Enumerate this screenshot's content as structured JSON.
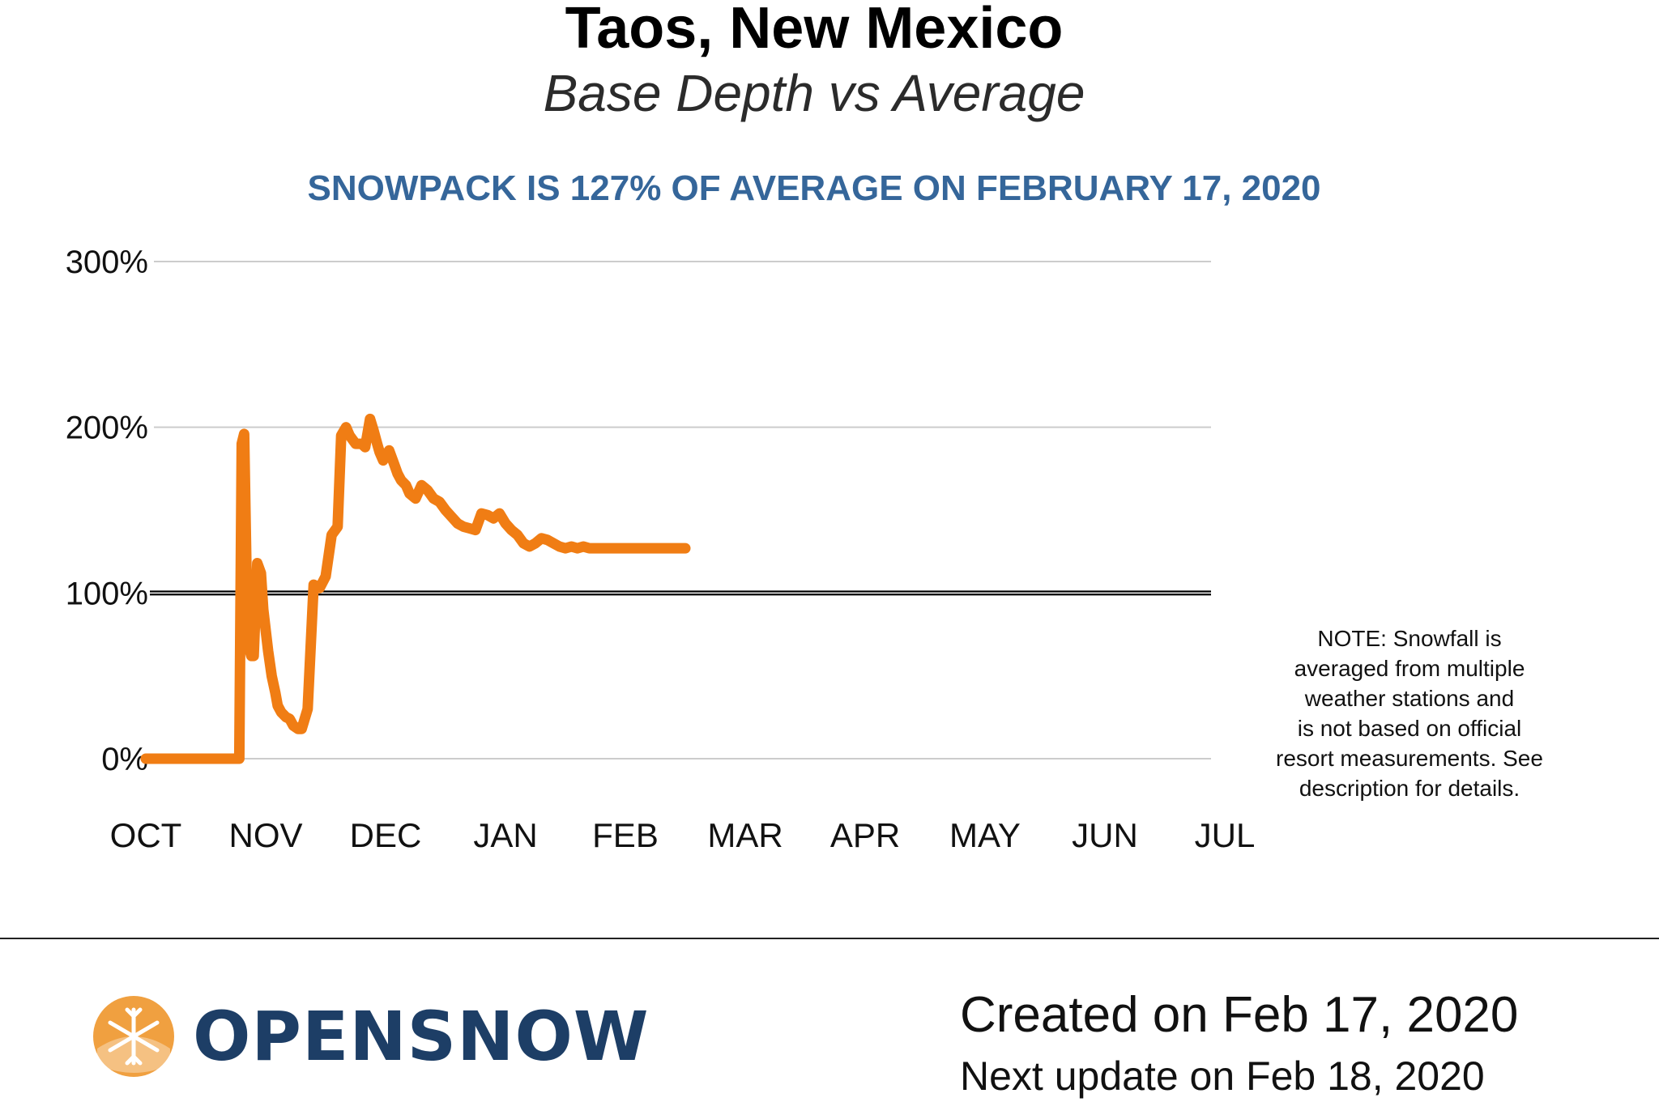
{
  "header": {
    "title": "Taos, New Mexico",
    "subtitle": "Base Depth vs Average",
    "headline": "SNOWPACK IS 127% OF AVERAGE ON FEBRUARY 17, 2020"
  },
  "note": "NOTE: Snowfall is\naveraged from multiple\nweather stations and\nis not based on official\nresort measurements. See\ndescription for details.",
  "footer": {
    "brand": "OPENSNOW",
    "created": "Created on Feb 17, 2020",
    "next_update": "Next update on Feb 18, 2020"
  },
  "colors": {
    "series": "#f07d14",
    "headline": "#35669a",
    "brand": "#1d3e66",
    "logo_mark": "#f0a040",
    "reference_line": "#000000",
    "grid": "#cccccc"
  },
  "chart_data": {
    "type": "line",
    "title": "Taos, New Mexico",
    "subtitle": "Base Depth vs Average",
    "xlabel": "",
    "ylabel": "",
    "x_ticks": [
      "OCT",
      "NOV",
      "DEC",
      "JAN",
      "FEB",
      "MAR",
      "APR",
      "MAY",
      "JUN",
      "JUL"
    ],
    "y_ticks": [
      "0%",
      "100%",
      "200%",
      "300%"
    ],
    "ylim": [
      0,
      300
    ],
    "xlim_months": [
      0,
      9
    ],
    "grid": true,
    "reference_line": 100,
    "series": [
      {
        "color": "#f07d14",
        "x": [
          0.0,
          0.3,
          0.7,
          0.78,
          0.8,
          0.82,
          0.85,
          0.88,
          0.9,
          0.93,
          0.96,
          0.98,
          1.02,
          1.05,
          1.08,
          1.1,
          1.13,
          1.17,
          1.2,
          1.23,
          1.27,
          1.3,
          1.35,
          1.4,
          1.45,
          1.5,
          1.55,
          1.6,
          1.63,
          1.67,
          1.7,
          1.75,
          1.8,
          1.83,
          1.87,
          1.9,
          1.93,
          1.95,
          1.98,
          2.0,
          2.03,
          2.07,
          2.1,
          2.13,
          2.17,
          2.2,
          2.25,
          2.3,
          2.35,
          2.4,
          2.45,
          2.5,
          2.55,
          2.6,
          2.65,
          2.7,
          2.75,
          2.8,
          2.85,
          2.9,
          2.95,
          3.0,
          3.05,
          3.1,
          3.15,
          3.2,
          3.25,
          3.3,
          3.35,
          3.4,
          3.45,
          3.5,
          3.55,
          3.6,
          3.65,
          3.7,
          3.75,
          3.8,
          3.85,
          3.9,
          3.95,
          4.0,
          4.05,
          4.1,
          4.15,
          4.2,
          4.25,
          4.3,
          4.35,
          4.4,
          4.45,
          4.5
        ],
        "y": [
          0,
          0,
          0,
          0,
          190,
          196,
          70,
          62,
          62,
          118,
          112,
          90,
          65,
          50,
          40,
          32,
          28,
          25,
          24,
          20,
          18,
          18,
          30,
          105,
          103,
          110,
          135,
          140,
          195,
          200,
          195,
          190,
          190,
          188,
          205,
          198,
          190,
          185,
          180,
          183,
          186,
          178,
          172,
          168,
          165,
          160,
          157,
          165,
          162,
          157,
          155,
          150,
          146,
          142,
          140,
          139,
          138,
          148,
          147,
          145,
          148,
          142,
          138,
          135,
          130,
          128,
          130,
          133,
          132,
          130,
          128,
          127,
          128,
          127,
          128,
          127,
          127,
          127,
          127,
          127,
          127,
          127,
          127,
          127,
          127,
          127,
          127,
          127,
          127,
          127,
          127,
          127
        ]
      }
    ]
  }
}
